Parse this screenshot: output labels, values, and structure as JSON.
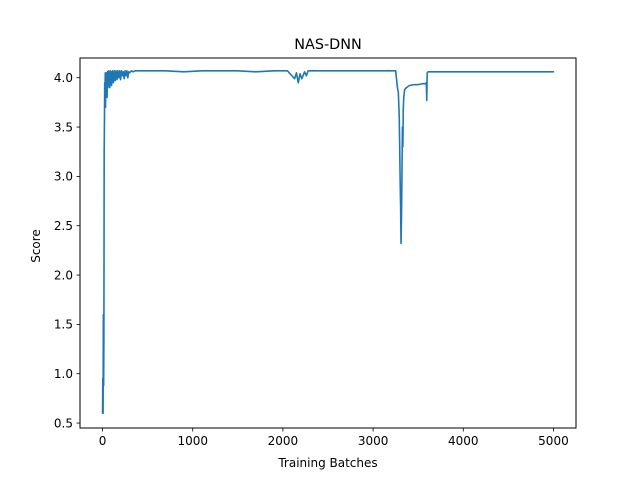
{
  "chart_data": {
    "type": "line",
    "title": "NAS-DNN",
    "xlabel": "Training Batches",
    "ylabel": "Score",
    "xlim": [
      -250,
      5250
    ],
    "ylim": [
      0.45,
      4.2
    ],
    "xticks": [
      0,
      1000,
      2000,
      3000,
      4000,
      5000
    ],
    "xtick_labels": [
      "0",
      "1000",
      "2000",
      "3000",
      "4000",
      "5000"
    ],
    "yticks": [
      0.5,
      1.0,
      1.5,
      2.0,
      2.5,
      3.0,
      3.5,
      4.0
    ],
    "ytick_labels": [
      "0.5",
      "1.0",
      "1.5",
      "2.0",
      "2.5",
      "3.0",
      "3.5",
      "4.0"
    ],
    "grid": false,
    "series": [
      {
        "color": "#1f77b4",
        "x": [
          0,
          3,
          6,
          9,
          12,
          15,
          18,
          21,
          24,
          27,
          30,
          33,
          36,
          40,
          45,
          50,
          55,
          60,
          65,
          70,
          75,
          80,
          85,
          90,
          95,
          100,
          110,
          120,
          130,
          140,
          150,
          160,
          170,
          180,
          190,
          200,
          210,
          220,
          230,
          240,
          250,
          260,
          270,
          280,
          290,
          300,
          320,
          340,
          360,
          400,
          500,
          700,
          900,
          1100,
          1300,
          1500,
          1700,
          1900,
          2050,
          2100,
          2130,
          2150,
          2170,
          2190,
          2210,
          2240,
          2260,
          2280,
          2300,
          2500,
          2800,
          3100,
          3250,
          3270,
          3280,
          3290,
          3295,
          3300,
          3305,
          3310,
          3315,
          3320,
          3325,
          3330,
          3335,
          3340,
          3350,
          3370,
          3400,
          3450,
          3500,
          3550,
          3580,
          3590,
          3595,
          3600,
          3610,
          3630,
          3650,
          3700,
          4000,
          4500,
          5000
        ],
        "y": [
          0.6,
          0.95,
          0.6,
          1.6,
          0.88,
          1.35,
          3.25,
          3.55,
          3.95,
          3.75,
          4.05,
          3.7,
          4.0,
          3.85,
          4.05,
          3.8,
          4.06,
          3.9,
          4.07,
          3.95,
          4.06,
          3.9,
          4.07,
          4.0,
          4.06,
          3.92,
          4.07,
          3.95,
          4.07,
          3.97,
          4.07,
          3.98,
          4.07,
          4.0,
          4.07,
          3.98,
          4.07,
          4.02,
          4.06,
          3.99,
          4.07,
          4.02,
          4.07,
          4.0,
          4.06,
          4.05,
          4.07,
          4.06,
          4.07,
          4.07,
          4.07,
          4.07,
          4.06,
          4.07,
          4.07,
          4.07,
          4.06,
          4.07,
          4.07,
          4.02,
          3.99,
          4.05,
          3.95,
          4.04,
          3.99,
          4.06,
          4.02,
          4.07,
          4.07,
          4.07,
          4.07,
          4.07,
          4.07,
          3.9,
          3.85,
          3.6,
          3.3,
          2.95,
          2.7,
          2.32,
          2.6,
          3.0,
          3.5,
          3.3,
          3.7,
          3.8,
          3.88,
          3.9,
          3.92,
          3.93,
          3.93,
          3.94,
          3.94,
          3.95,
          3.77,
          4.05,
          4.06,
          4.06,
          4.06,
          4.06,
          4.06,
          4.06,
          4.06
        ]
      }
    ]
  }
}
